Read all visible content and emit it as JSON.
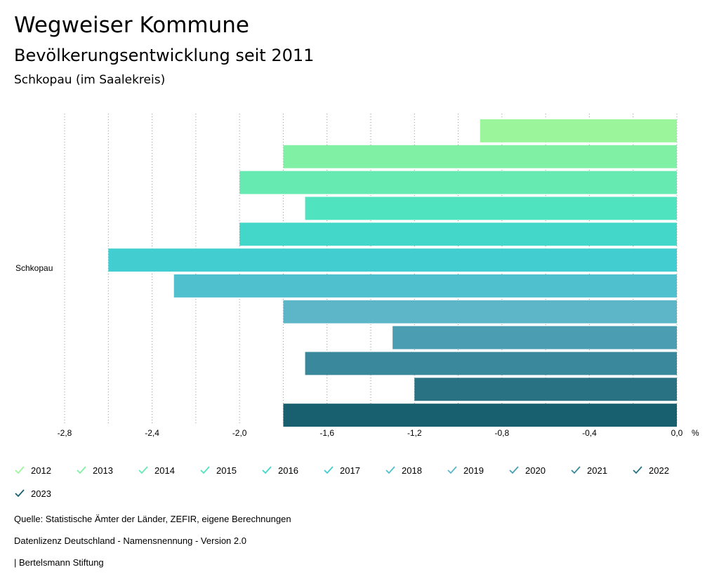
{
  "header": {
    "title": "Wegweiser Kommune",
    "subtitle": "Bevölkerungsentwicklung seit 2011",
    "region": "Schkopau (im Saalekreis)"
  },
  "chart_data": {
    "type": "bar",
    "orientation": "horizontal",
    "category": "Schkopau",
    "unit": "%",
    "xlim": [
      -2.8,
      0.0
    ],
    "xticks": [
      "-2,8",
      "-2,4",
      "-2,0",
      "-1,6",
      "-1,2",
      "-0,8",
      "-0,4",
      "0,0"
    ],
    "series": [
      {
        "name": "2012",
        "value": -0.9,
        "color": "#9bf59a"
      },
      {
        "name": "2013",
        "value": -1.8,
        "color": "#7ff0a4"
      },
      {
        "name": "2014",
        "value": -2.0,
        "color": "#66eab1"
      },
      {
        "name": "2015",
        "value": -1.7,
        "color": "#50e3bf"
      },
      {
        "name": "2016",
        "value": -2.0,
        "color": "#42d7c9"
      },
      {
        "name": "2017",
        "value": -2.6,
        "color": "#42cdd0"
      },
      {
        "name": "2018",
        "value": -2.3,
        "color": "#4fc0ce"
      },
      {
        "name": "2019",
        "value": -1.8,
        "color": "#5db6c8"
      },
      {
        "name": "2020",
        "value": -1.3,
        "color": "#4b9eb2"
      },
      {
        "name": "2021",
        "value": -1.7,
        "color": "#3a889c"
      },
      {
        "name": "2022",
        "value": -1.2,
        "color": "#287283"
      },
      {
        "name": "2023",
        "value": -1.8,
        "color": "#185f6f"
      }
    ]
  },
  "footer": {
    "source": "Quelle: Statistische Ämter der Länder, ZEFIR, eigene Berechnungen",
    "license": "Datenlizenz Deutschland - Namensnennung - Version 2.0",
    "publisher": "| Bertelsmann Stiftung"
  }
}
